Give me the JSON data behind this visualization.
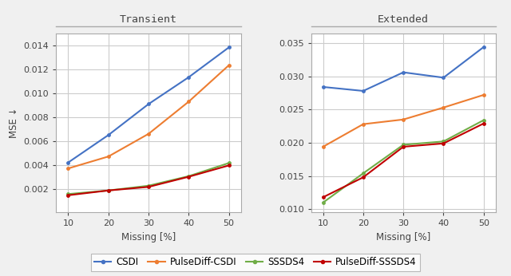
{
  "x": [
    10,
    20,
    30,
    40,
    50
  ],
  "transient": {
    "CSDI": [
      0.0042,
      0.0065,
      0.0091,
      0.01135,
      0.01385
    ],
    "PulseDiff-CSDI": [
      0.0037,
      0.0047,
      0.0066,
      0.0093,
      0.01235
    ],
    "SSSDS4": [
      0.00155,
      0.00185,
      0.00225,
      0.00305,
      0.00415
    ],
    "PulseDiff-SSSDS4": [
      0.00145,
      0.00185,
      0.00215,
      0.003,
      0.00395
    ]
  },
  "extended": {
    "CSDI": [
      0.0284,
      0.0278,
      0.0306,
      0.0298,
      0.0344
    ],
    "PulseDiff-CSDI": [
      0.0194,
      0.0228,
      0.0235,
      0.0253,
      0.0272
    ],
    "SSSDS4": [
      0.011,
      0.0154,
      0.0197,
      0.0202,
      0.0234
    ],
    "PulseDiff-SSSDS4": [
      0.0118,
      0.0148,
      0.0194,
      0.0199,
      0.0229
    ]
  },
  "colors": {
    "CSDI": "#4472C4",
    "PulseDiff-CSDI": "#ED7D31",
    "SSSDS4": "#70AD47",
    "PulseDiff-SSSDS4": "#C00000"
  },
  "transient_ylim": [
    0.0,
    0.01505
  ],
  "extended_ylim": [
    0.0095,
    0.0365
  ],
  "transient_yticks": [
    0.002,
    0.004,
    0.006,
    0.008,
    0.01,
    0.012,
    0.014
  ],
  "extended_yticks": [
    0.01,
    0.015,
    0.02,
    0.025,
    0.03,
    0.035
  ],
  "xlabel": "Missing [%]",
  "ylabel": "MSE ↓",
  "title_transient": "Transient",
  "title_extended": "Extended",
  "legend_labels": [
    "CSDI",
    "PulseDiff-CSDI",
    "SSSDS4",
    "PulseDiff-SSSDS4"
  ],
  "fig_facecolor": "#f0f0f0",
  "ax_facecolor": "#ffffff",
  "grid_color": "#cccccc",
  "title_color": "#444444",
  "tick_color": "#444444",
  "spine_color": "#aaaaaa"
}
